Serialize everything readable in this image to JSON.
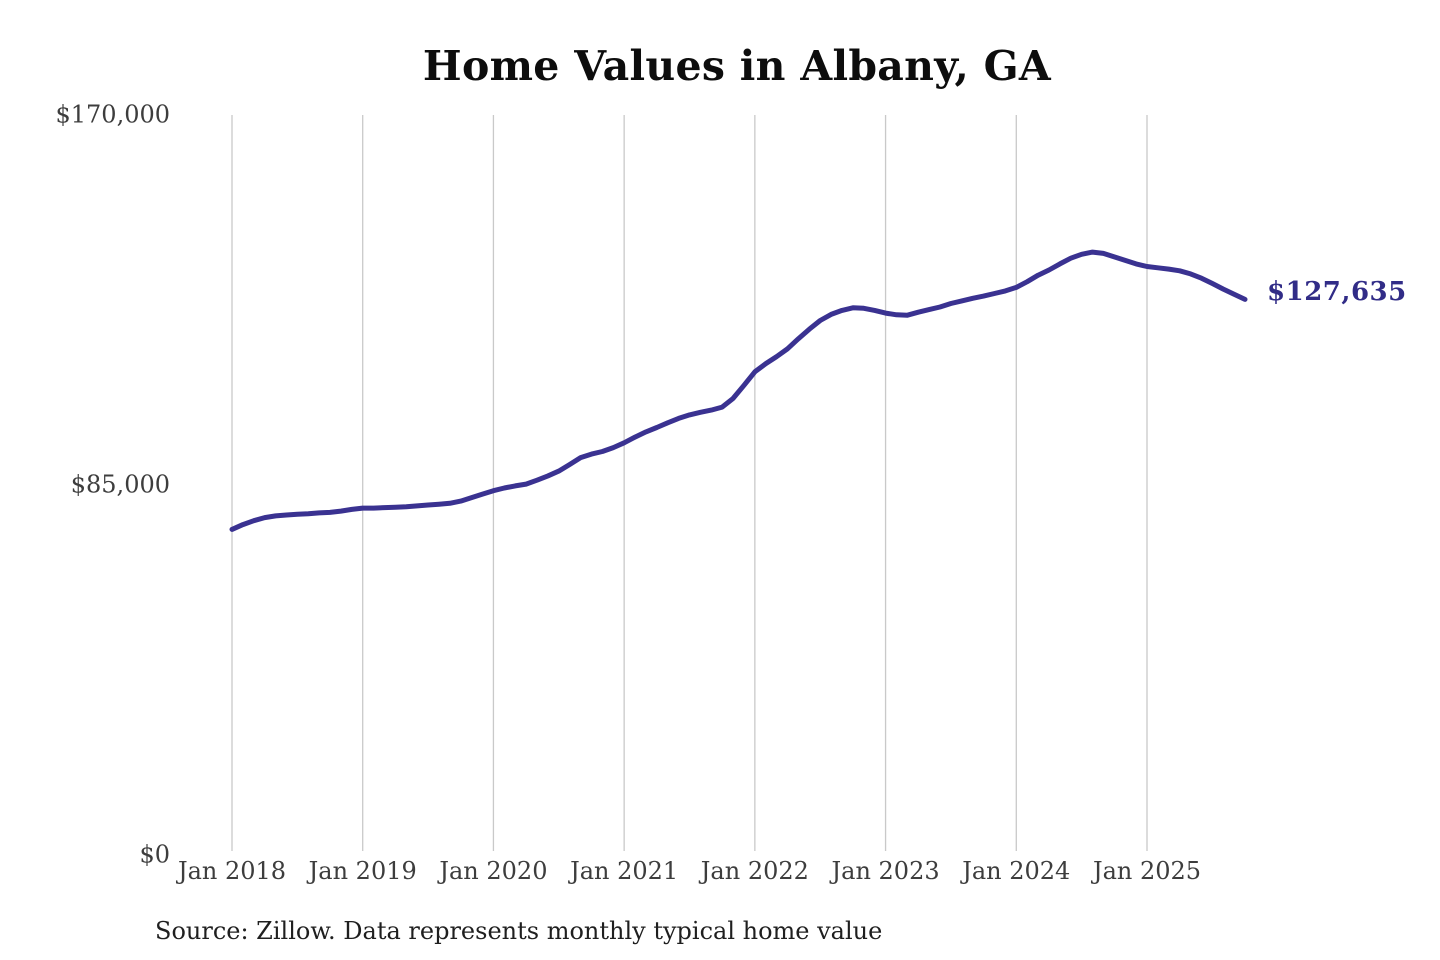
{
  "chart_data": {
    "type": "line",
    "title": "Home Values in Albany, GA",
    "series_name": "Monthly typical home value",
    "frequency": "monthly",
    "x_start": "Jan 2018",
    "x_end": "Oct 2025",
    "values": [
      74800,
      75900,
      76800,
      77500,
      77900,
      78100,
      78300,
      78400,
      78600,
      78700,
      79000,
      79400,
      79700,
      79700,
      79800,
      79900,
      80000,
      80200,
      80400,
      80600,
      80800,
      81300,
      82100,
      82900,
      83700,
      84300,
      84800,
      85200,
      86100,
      87100,
      88200,
      89700,
      91300,
      92100,
      92700,
      93600,
      94700,
      96000,
      97200,
      98200,
      99300,
      100300,
      101100,
      101700,
      102200,
      102900,
      104900,
      107900,
      111000,
      112900,
      114500,
      116300,
      118600,
      120800,
      122800,
      124200,
      125100,
      125700,
      125600,
      125100,
      124500,
      124100,
      124000,
      124700,
      125300,
      125900,
      126700,
      127300,
      127900,
      128400,
      129000,
      129600,
      130400,
      131700,
      133200,
      134400,
      135800,
      137100,
      138000,
      138500,
      138200,
      137400,
      136600,
      135800,
      135200,
      134900,
      134600,
      134200,
      133500,
      132500,
      131300,
      130000,
      128800,
      127635
    ],
    "last_value": 127635,
    "end_label": "$127,635",
    "x_tick_labels": [
      "Jan 2018",
      "Jan 2019",
      "Jan 2020",
      "Jan 2021",
      "Jan 2022",
      "Jan 2023",
      "Jan 2024",
      "Jan 2025"
    ],
    "y_ticks": [
      {
        "value": 0,
        "label": "$0"
      },
      {
        "value": 85000,
        "label": "$85,000"
      },
      {
        "value": 170000,
        "label": "$170,000"
      }
    ],
    "ylim": [
      0,
      170000
    ],
    "grid": "vertical-only",
    "legend": "none",
    "source": "Source: Zillow. Data represents monthly typical home value",
    "colors": {
      "line": "#3a3291",
      "end_label": "#312c87",
      "gridline": "#c9c9c9",
      "axis_text": "#3d3d3d",
      "title_text": "#0d0d0d",
      "source_text": "#1f1f1f",
      "background": "#ffffff"
    }
  }
}
